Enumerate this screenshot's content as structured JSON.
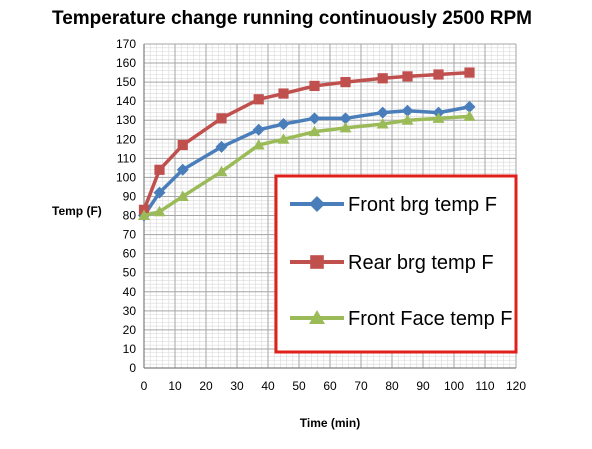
{
  "chart_data": {
    "type": "line",
    "title": "Temperature change running continuously  2500 RPM",
    "xlabel": "Time (min)",
    "ylabel": "Temp (F)",
    "xlim": [
      0,
      120
    ],
    "ylim": [
      0,
      170
    ],
    "xticks": [
      0,
      10,
      20,
      30,
      40,
      50,
      60,
      70,
      80,
      90,
      100,
      110,
      120
    ],
    "yticks": [
      0,
      10,
      20,
      30,
      40,
      50,
      60,
      70,
      80,
      90,
      100,
      110,
      120,
      130,
      140,
      150,
      160,
      170
    ],
    "grid": true,
    "legend_position": "right",
    "series": [
      {
        "name": "Front brg temp F",
        "color": "#4a7ebb",
        "marker": "diamond",
        "x": [
          0,
          5,
          12.5,
          25,
          37,
          45,
          55,
          65,
          77,
          85,
          95,
          105
        ],
        "y": [
          80,
          92,
          104,
          116,
          125,
          128,
          131,
          131,
          134,
          135,
          134,
          137
        ]
      },
      {
        "name": "Rear brg temp F",
        "color": "#c0504d",
        "marker": "square",
        "x": [
          0,
          5,
          12.5,
          25,
          37,
          45,
          55,
          65,
          77,
          85,
          95,
          105
        ],
        "y": [
          83,
          104,
          117,
          131,
          141,
          144,
          148,
          150,
          152,
          153,
          154,
          155
        ]
      },
      {
        "name": "Front Face temp F",
        "color": "#9bbb59",
        "marker": "triangle",
        "x": [
          0,
          5,
          12.5,
          25,
          37,
          45,
          55,
          65,
          77,
          85,
          95,
          105
        ],
        "y": [
          80,
          82,
          90,
          103,
          117,
          120,
          124,
          126,
          128,
          130,
          131,
          132
        ]
      }
    ]
  }
}
